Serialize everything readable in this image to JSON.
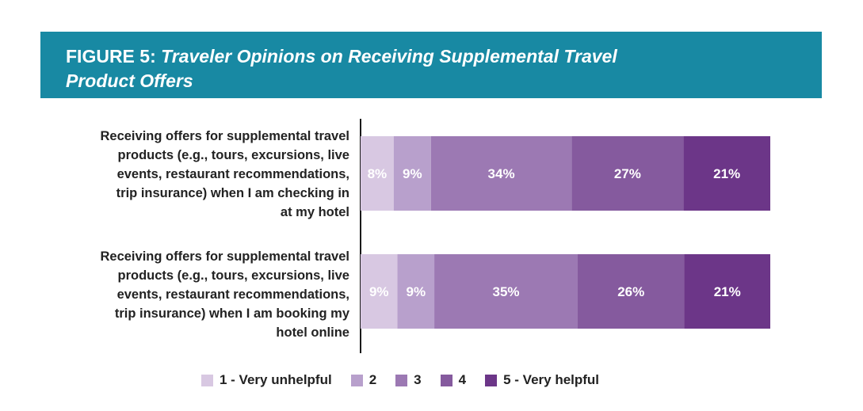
{
  "figure": {
    "label": "FIGURE 5:",
    "title_line1": "Traveler Opinions on Receiving  Supplemental Travel",
    "title_line2": "Product Offers"
  },
  "colors": {
    "banner": "#1889a3",
    "scale": [
      "#d8c8e2",
      "#b8a0cc",
      "#9c79b3",
      "#855a9e",
      "#6c3688"
    ]
  },
  "chart_data": {
    "type": "bar",
    "orientation": "horizontal",
    "stacked": true,
    "unit": "%",
    "categories": [
      "Receiving offers for supplemental travel products (e.g., tours, excursions, live events, restaurant recommendations, trip insurance) when I am checking in at my hotel",
      "Receiving offers for supplemental travel products (e.g., tours, excursions, live events, restaurant recommendations, trip insurance) when I am booking my hotel online"
    ],
    "category_lines": [
      [
        "Receiving offers for supplemental travel",
        "products (e.g., tours, excursions, live",
        "events, restaurant recommendations,",
        "trip insurance) when I am checking in",
        "at my hotel"
      ],
      [
        "Receiving offers for supplemental travel",
        "products (e.g., tours, excursions, live",
        "events, restaurant recommendations,",
        "trip insurance) when I am booking my",
        "hotel online"
      ]
    ],
    "series": [
      {
        "name": "1 - Very unhelpful",
        "values": [
          8,
          9
        ]
      },
      {
        "name": "2",
        "values": [
          9,
          9
        ]
      },
      {
        "name": "3",
        "values": [
          34,
          35
        ]
      },
      {
        "name": "4",
        "values": [
          27,
          26
        ]
      },
      {
        "name": "5 - Very helpful",
        "values": [
          21,
          21
        ]
      }
    ],
    "data_labels": [
      [
        "8%",
        "9%",
        "34%",
        "27%",
        "21%"
      ],
      [
        "9%",
        "9%",
        "35%",
        "26%",
        "21%"
      ]
    ],
    "legend_position": "bottom",
    "grid": false
  }
}
